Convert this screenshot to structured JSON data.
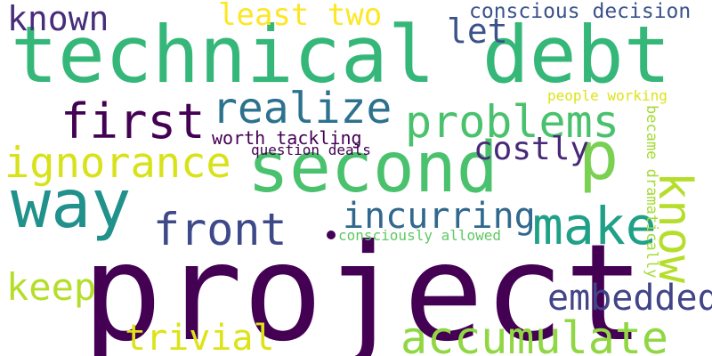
{
  "words": [
    {
      "text": "technical debt",
      "color": "#35b779"
    },
    {
      "text": "project",
      "color": "#440154"
    },
    {
      "text": "second",
      "color": "#4ac16d"
    },
    {
      "text": "way",
      "color": "#21918c"
    },
    {
      "text": "p",
      "color": "#7ad151"
    },
    {
      "text": "first",
      "color": "#440154"
    },
    {
      "text": "realize",
      "color": "#2c728e"
    },
    {
      "text": "problems",
      "color": "#4ac16d"
    },
    {
      "text": "ignorance",
      "color": "#d8e219"
    },
    {
      "text": "known",
      "color": "#472d7b"
    },
    {
      "text": "least two",
      "color": "#fde725"
    },
    {
      "text": "let",
      "color": "#3b528b"
    },
    {
      "text": "conscious decision",
      "color": "#3b528b"
    },
    {
      "text": "costly",
      "color": "#482878"
    },
    {
      "text": "worth tackling",
      "color": "#440154"
    },
    {
      "text": "question deals",
      "color": "#440154"
    },
    {
      "text": "front",
      "color": "#3e4989"
    },
    {
      "text": "incurring",
      "color": "#31688e"
    },
    {
      "text": "make",
      "color": "#1fa187"
    },
    {
      "text": "know",
      "color": "#b5de2b"
    },
    {
      "text": "people working",
      "color": "#dde318"
    },
    {
      "text": "became dramatically",
      "color": "#a5db36"
    },
    {
      "text": "consciously allowed",
      "color": "#5ec962"
    },
    {
      "text": "keep",
      "color": "#b5de2b"
    },
    {
      "text": "embedded",
      "color": "#414487"
    },
    {
      "text": "trivial",
      "color": "#dde318"
    },
    {
      "text": "accumulate",
      "color": "#90d743"
    }
  ]
}
